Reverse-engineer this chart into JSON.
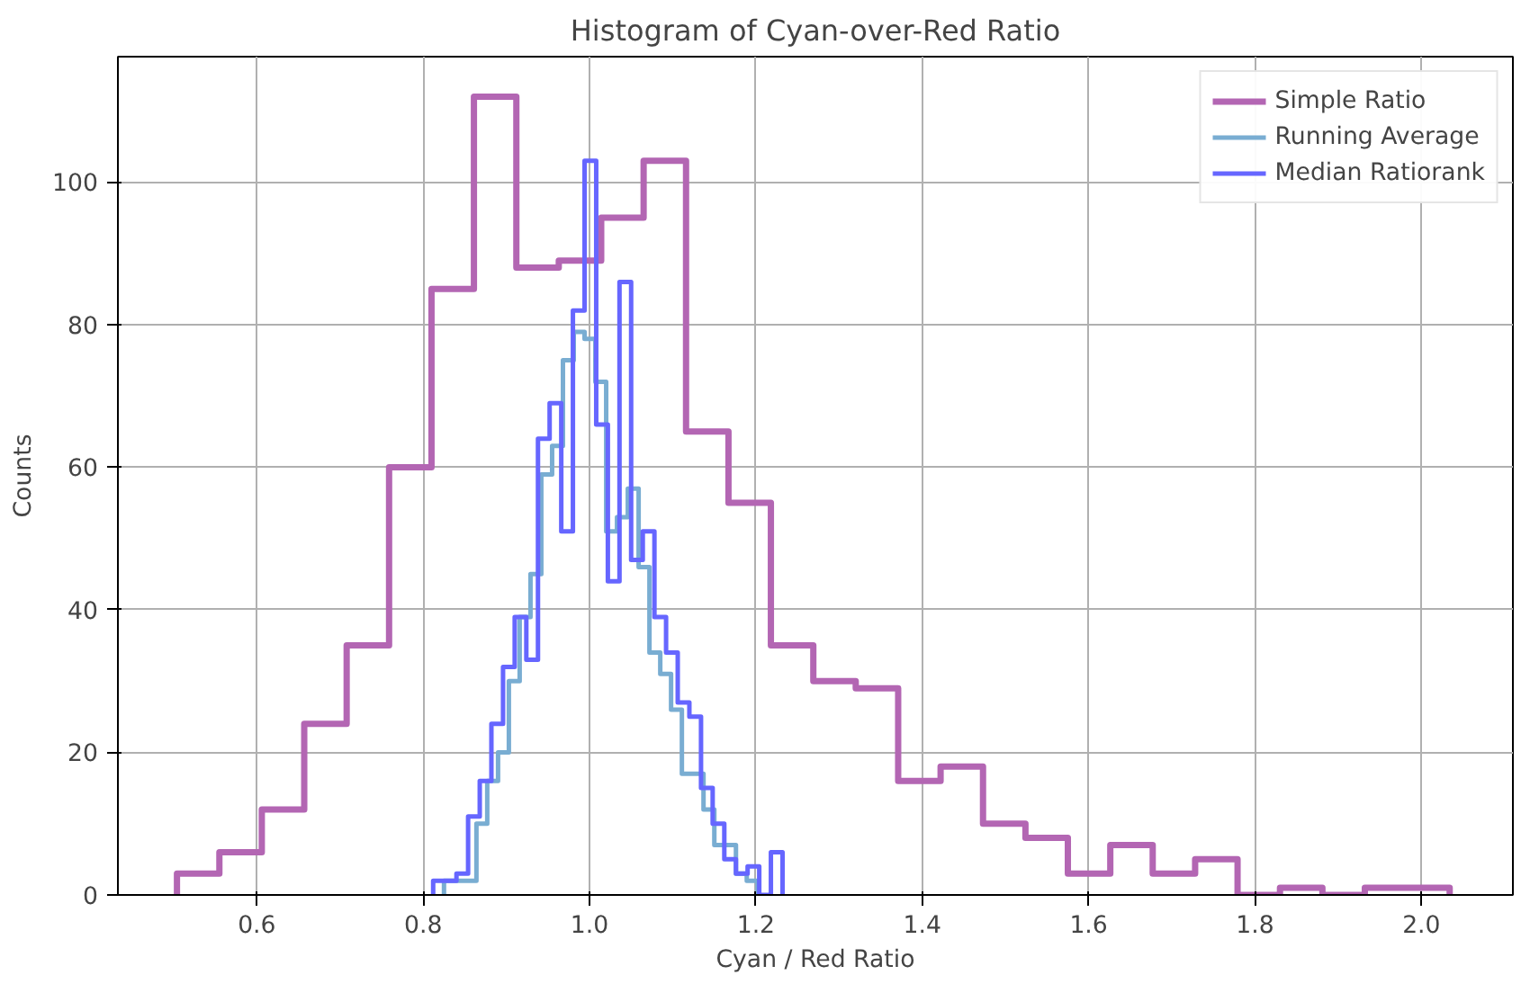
{
  "chart_data": {
    "type": "step",
    "title": "Histogram of Cyan-over-Red Ratio",
    "xlabel": "Cyan / Red Ratio",
    "ylabel": "Counts",
    "xlim": [
      0.433,
      2.11
    ],
    "ylim": [
      0,
      117.6
    ],
    "xticks": [
      {
        "value": 0.6,
        "label": "0.6"
      },
      {
        "value": 0.8,
        "label": "0.8"
      },
      {
        "value": 1.0,
        "label": "1.0"
      },
      {
        "value": 1.2,
        "label": "1.2"
      },
      {
        "value": 1.4,
        "label": "1.4"
      },
      {
        "value": 1.6,
        "label": "1.6"
      },
      {
        "value": 1.8,
        "label": "1.8"
      },
      {
        "value": 2.0,
        "label": "2.0"
      }
    ],
    "yticks": [
      0,
      20,
      40,
      60,
      80,
      100
    ],
    "grid": true,
    "legend": "top right",
    "series": [
      {
        "name": "Simple Ratio",
        "color": "#b366b3",
        "x": [
          0.504,
          0.504,
          0.555,
          0.606,
          0.657,
          0.708,
          0.759,
          0.81,
          0.861,
          0.912,
          0.963,
          1.014,
          1.065,
          1.116,
          1.167,
          1.218,
          1.269,
          1.32,
          1.371,
          1.422,
          1.473,
          1.524,
          1.575,
          1.626,
          1.677,
          1.728,
          1.779,
          1.83,
          1.881,
          1.932,
          1.983,
          2.034
        ],
        "values": [
          0,
          3,
          6,
          12,
          24,
          35,
          60,
          85,
          112,
          88,
          89,
          95,
          103,
          65,
          55,
          35,
          30,
          29,
          16,
          18,
          10,
          8,
          3,
          7,
          3,
          5,
          0,
          1,
          0,
          1,
          1,
          0
        ]
      },
      {
        "name": "Running Average",
        "color": "#79add2",
        "x": [
          0.825,
          0.825,
          0.838,
          0.851,
          0.864,
          0.877,
          0.89,
          0.903,
          0.916,
          0.929,
          0.942,
          0.955,
          0.968,
          0.981,
          0.994,
          1.007,
          1.02,
          1.033,
          1.046,
          1.059,
          1.072,
          1.085,
          1.098,
          1.111,
          1.124,
          1.137,
          1.15,
          1.163,
          1.176,
          1.189,
          1.202
        ],
        "values": [
          0,
          2,
          2,
          2,
          10,
          16,
          20,
          30,
          39,
          45,
          59,
          63,
          75,
          79,
          78,
          72,
          51,
          53,
          57,
          46,
          34,
          31,
          26,
          17,
          17,
          12,
          7,
          7,
          3,
          2,
          0
        ]
      },
      {
        "name": "Median Ratiorank",
        "color": "#6666ff",
        "x": [
          0.812,
          0.812,
          0.826,
          0.84,
          0.854,
          0.868,
          0.882,
          0.896,
          0.91,
          0.924,
          0.938,
          0.952,
          0.966,
          0.98,
          0.994,
          1.008,
          1.022,
          1.036,
          1.05,
          1.064,
          1.078,
          1.092,
          1.106,
          1.12,
          1.134,
          1.148,
          1.162,
          1.176,
          1.19,
          1.204,
          1.218,
          1.232
        ],
        "values": [
          0,
          2,
          2,
          3,
          11,
          16,
          24,
          32,
          39,
          33,
          64,
          69,
          51,
          82,
          103,
          66,
          44,
          86,
          47,
          51,
          39,
          34,
          27,
          25,
          15,
          10,
          5,
          3,
          4,
          0,
          6,
          0
        ]
      }
    ]
  }
}
